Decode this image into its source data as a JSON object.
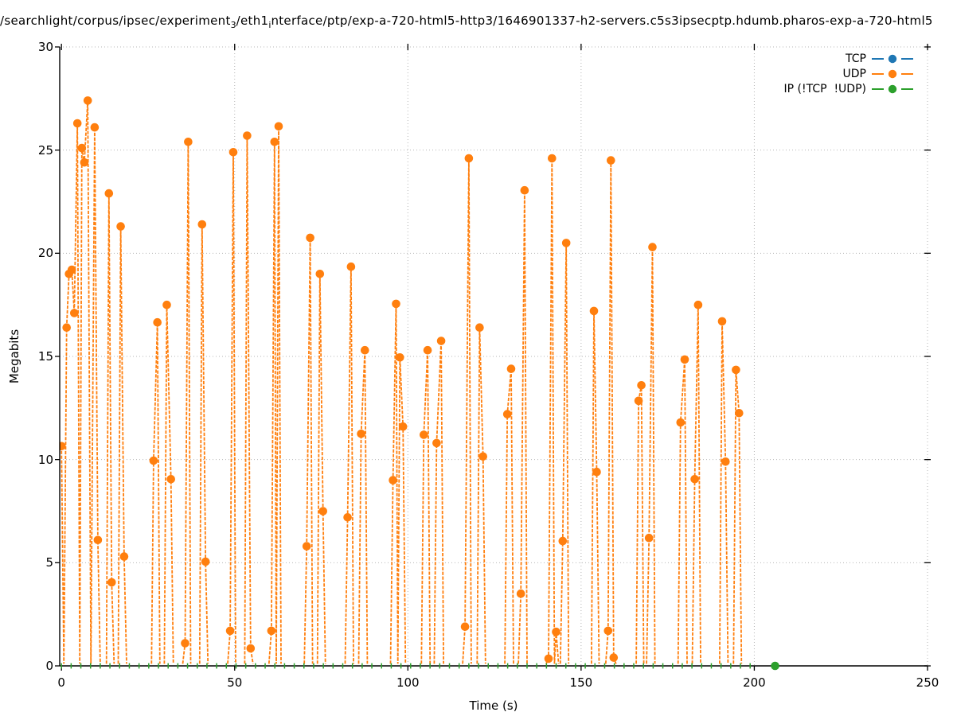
{
  "title": {
    "parts": [
      "/searchlight/corpus/ipsec/experiment",
      "3",
      "/eth1",
      "i",
      "nterface/ptp/exp-a-720-html5-http3/1646901337-h2-servers.c5s3ipsecptp.hdumb.pharos-exp-a-720-html5"
    ]
  },
  "axes": {
    "xlabel": "Time (s)",
    "ylabel": "Megabits",
    "x_ticks": [
      0,
      50,
      100,
      150,
      200,
      250
    ],
    "y_ticks": [
      0,
      5,
      10,
      15,
      20,
      25,
      30
    ]
  },
  "legend": {
    "items": [
      {
        "label": "TCP",
        "color": "#1f77b4"
      },
      {
        "label": "UDP",
        "color": "#ff7f0e"
      },
      {
        "label": "IP (!TCP  !UDP)",
        "color": "#2ca02c"
      }
    ]
  },
  "colors": {
    "grid": "#b5b5b5",
    "axis": "#000000",
    "background": "#ffffff"
  },
  "chart_data": {
    "type": "line",
    "title": "/searchlight/corpus/ipsec/experiment_3/eth1_interface/ptp/exp-a-720-html5-http3/1646901337-h2-servers.c5s3ipsecptp.hdumb.pharos-exp-a-720-html5",
    "xlabel": "Time (s)",
    "ylabel": "Megabits",
    "xlim": [
      -0.5,
      250
    ],
    "ylim": [
      0,
      30
    ],
    "grid": true,
    "legend_position": "upper right",
    "point_format": "[time_s, megabits, marker_visible]",
    "series": [
      {
        "name": "TCP",
        "color": "#1f77b4",
        "style": "dashed-linespoints",
        "marker": "circle",
        "points": [],
        "note": "listed in legend, no visible data points"
      },
      {
        "name": "UDP",
        "color": "#ff7f0e",
        "style": "dashed-linespoints",
        "marker": "circle",
        "bursts": [
          [
            [
              0,
              10.65,
              1
            ],
            [
              0.7,
              0.1,
              0
            ],
            [
              1.5,
              16.4,
              1
            ],
            [
              2.2,
              19.0,
              1
            ],
            [
              3.0,
              19.2,
              1
            ],
            [
              3.7,
              17.1,
              1
            ],
            [
              4.6,
              26.3,
              1
            ],
            [
              5.3,
              0.1,
              0
            ],
            [
              5.9,
              25.1,
              1
            ],
            [
              6.6,
              24.4,
              1
            ],
            [
              7.6,
              27.4,
              1
            ],
            [
              8.5,
              0.1,
              0
            ],
            [
              9.6,
              26.1,
              1
            ],
            [
              10.5,
              6.1,
              1
            ],
            [
              11.2,
              0.1,
              0
            ]
          ],
          [
            [
              13.0,
              0.1,
              0
            ],
            [
              13.7,
              22.9,
              1
            ],
            [
              14.5,
              4.05,
              1
            ],
            [
              15.2,
              0.1,
              0
            ]
          ],
          [
            [
              16.4,
              0.1,
              0
            ],
            [
              17.1,
              21.3,
              1
            ],
            [
              18.1,
              5.3,
              1
            ],
            [
              18.8,
              0.1,
              0
            ]
          ],
          [
            [
              26.0,
              0.1,
              0
            ],
            [
              26.6,
              9.95,
              1
            ],
            [
              27.7,
              16.65,
              1
            ],
            [
              28.4,
              0.1,
              0
            ]
          ],
          [
            [
              29.7,
              0.1,
              0
            ],
            [
              30.4,
              17.5,
              1
            ],
            [
              31.6,
              9.05,
              1
            ],
            [
              32.3,
              0.1,
              0
            ]
          ],
          [
            [
              35.0,
              0.1,
              0
            ],
            [
              35.7,
              1.1,
              1
            ],
            [
              36.6,
              25.4,
              1
            ],
            [
              37.3,
              0.1,
              0
            ]
          ],
          [
            [
              39.9,
              0.1,
              0
            ],
            [
              40.6,
              21.4,
              1
            ],
            [
              41.6,
              5.05,
              1
            ],
            [
              42.3,
              0.1,
              0
            ]
          ],
          [
            [
              48.0,
              0.1,
              0
            ],
            [
              48.7,
              1.7,
              1
            ],
            [
              49.6,
              24.9,
              1
            ],
            [
              50.3,
              0.1,
              0
            ]
          ],
          [
            [
              52.9,
              0.1,
              0
            ],
            [
              53.6,
              25.7,
              1
            ],
            [
              54.6,
              0.85,
              1
            ],
            [
              55.3,
              0.1,
              0
            ]
          ],
          [
            [
              59.9,
              0.1,
              0
            ],
            [
              60.6,
              1.7,
              1
            ],
            [
              61.5,
              25.4,
              1
            ],
            [
              62.0,
              0.1,
              0
            ],
            [
              62.7,
              26.15,
              1
            ],
            [
              63.4,
              0.1,
              0
            ]
          ],
          [
            [
              70.1,
              0.1,
              0
            ],
            [
              70.8,
              5.8,
              1
            ],
            [
              71.8,
              20.75,
              1
            ],
            [
              72.5,
              0.1,
              0
            ]
          ],
          [
            [
              73.9,
              0.1,
              0
            ],
            [
              74.6,
              19.0,
              1
            ],
            [
              75.5,
              7.5,
              1
            ],
            [
              76.2,
              0.1,
              0
            ]
          ],
          [
            [
              81.9,
              0.1,
              0
            ],
            [
              82.6,
              7.2,
              1
            ],
            [
              83.6,
              19.35,
              1
            ],
            [
              84.3,
              0.1,
              0
            ]
          ],
          [
            [
              85.8,
              0.1,
              0
            ],
            [
              86.5,
              11.25,
              1
            ],
            [
              87.6,
              15.3,
              1
            ],
            [
              88.3,
              0.1,
              0
            ]
          ],
          [
            [
              95.0,
              0.1,
              0
            ],
            [
              95.7,
              9.0,
              1
            ],
            [
              96.6,
              17.55,
              1
            ],
            [
              97.1,
              0.1,
              0
            ],
            [
              97.7,
              14.95,
              1
            ],
            [
              98.6,
              11.6,
              1
            ],
            [
              99.3,
              0.1,
              0
            ]
          ],
          [
            [
              103.9,
              0.1,
              0
            ],
            [
              104.6,
              11.2,
              1
            ],
            [
              105.7,
              15.3,
              1
            ],
            [
              106.4,
              0.1,
              0
            ]
          ],
          [
            [
              107.6,
              0.1,
              0
            ],
            [
              108.3,
              10.8,
              1
            ],
            [
              109.6,
              15.75,
              1
            ],
            [
              110.3,
              0.1,
              0
            ]
          ],
          [
            [
              115.8,
              0.1,
              0
            ],
            [
              116.5,
              1.9,
              1
            ],
            [
              117.6,
              24.6,
              1
            ],
            [
              118.3,
              0.1,
              0
            ]
          ],
          [
            [
              120.0,
              0.1,
              0
            ],
            [
              120.7,
              16.4,
              1
            ],
            [
              121.7,
              10.15,
              1
            ],
            [
              122.4,
              0.1,
              0
            ]
          ],
          [
            [
              128.0,
              0.1,
              0
            ],
            [
              128.7,
              12.2,
              1
            ],
            [
              129.8,
              14.4,
              1
            ],
            [
              130.5,
              0.1,
              0
            ]
          ],
          [
            [
              131.9,
              0.1,
              0
            ],
            [
              132.6,
              3.5,
              1
            ],
            [
              133.7,
              23.05,
              1
            ],
            [
              134.4,
              0.1,
              0
            ]
          ],
          [
            [
              139.9,
              0.1,
              0
            ],
            [
              140.6,
              0.35,
              1
            ],
            [
              141.6,
              24.6,
              1
            ],
            [
              142.3,
              0.1,
              0
            ],
            [
              142.8,
              1.65,
              1
            ],
            [
              143.5,
              0.1,
              0
            ]
          ],
          [
            [
              144.0,
              0.1,
              0
            ],
            [
              144.7,
              6.05,
              1
            ],
            [
              145.7,
              20.5,
              1
            ],
            [
              146.4,
              0.1,
              0
            ]
          ],
          [
            [
              153.0,
              0.1,
              0
            ],
            [
              153.7,
              17.2,
              1
            ],
            [
              154.5,
              9.4,
              1
            ],
            [
              155.2,
              0.1,
              0
            ]
          ],
          [
            [
              157.1,
              0.1,
              0
            ],
            [
              157.8,
              1.7,
              1
            ],
            [
              158.6,
              24.5,
              1
            ],
            [
              159.4,
              0.4,
              1
            ],
            [
              160.1,
              0.1,
              0
            ]
          ],
          [
            [
              165.9,
              0.1,
              0
            ],
            [
              166.6,
              12.85,
              1
            ],
            [
              167.4,
              13.6,
              1
            ],
            [
              168.1,
              0.1,
              0
            ]
          ],
          [
            [
              168.9,
              0.1,
              0
            ],
            [
              169.6,
              6.2,
              1
            ],
            [
              170.6,
              20.3,
              1
            ],
            [
              171.3,
              0.1,
              0
            ]
          ],
          [
            [
              178.0,
              0.1,
              0
            ],
            [
              178.7,
              11.8,
              1
            ],
            [
              179.9,
              14.85,
              1
            ],
            [
              180.6,
              0.1,
              0
            ]
          ],
          [
            [
              182.1,
              0.1,
              0
            ],
            [
              182.8,
              9.05,
              1
            ],
            [
              183.8,
              17.5,
              1
            ],
            [
              184.5,
              0.1,
              0
            ]
          ],
          [
            [
              190.0,
              0.1,
              0
            ],
            [
              190.7,
              16.7,
              1
            ],
            [
              191.7,
              9.9,
              1
            ],
            [
              192.4,
              0.1,
              0
            ]
          ],
          [
            [
              194.0,
              0.1,
              0
            ],
            [
              194.7,
              14.35,
              1
            ],
            [
              195.6,
              12.25,
              1
            ],
            [
              196.3,
              0.1,
              0
            ]
          ]
        ]
      },
      {
        "name": "IP (!TCP  !UDP)",
        "color": "#2ca02c",
        "style": "dashed-linespoints",
        "marker": "circle",
        "baseline": {
          "t_start": 0,
          "t_end": 201,
          "value": 0,
          "dash_spacing_s": 2.8
        },
        "points": [
          [
            206,
            0,
            1
          ]
        ]
      }
    ]
  }
}
